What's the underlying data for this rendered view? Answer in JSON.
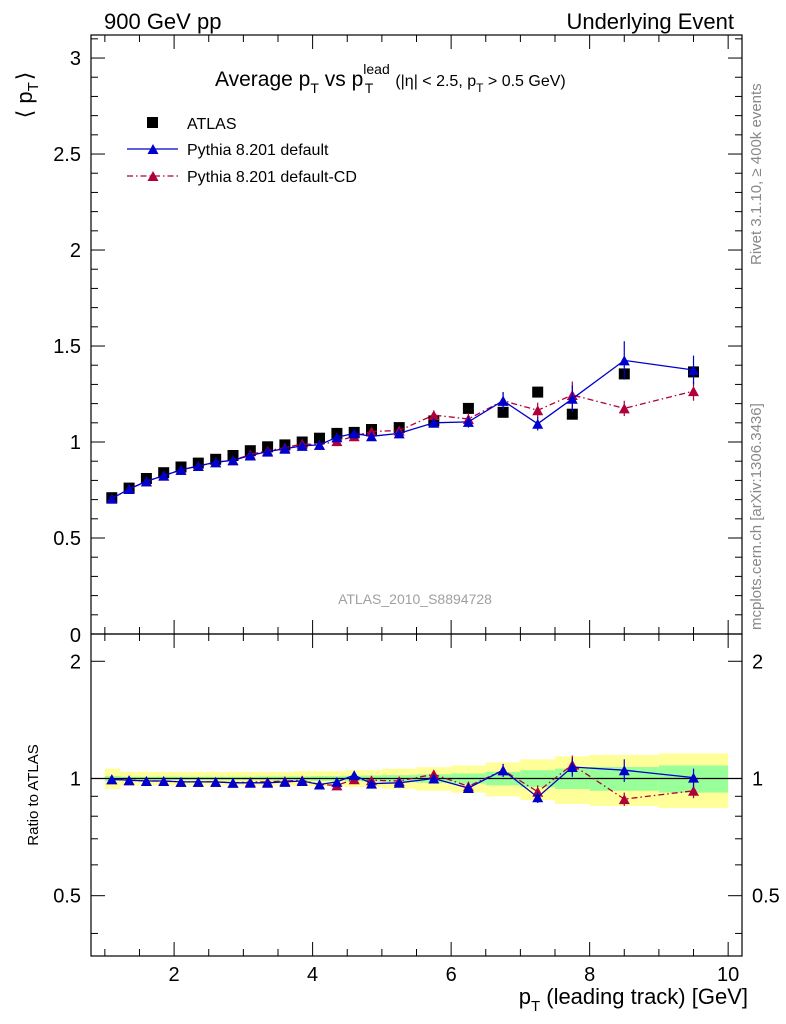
{
  "header": {
    "left": "900 GeV pp",
    "right": "Underlying Event"
  },
  "side_text": {
    "rivet": "Rivet 3.1.10, ≥ 400k events",
    "mcplots": "mcplots.cern.ch [arXiv:1306.3436]"
  },
  "plot_title": {
    "main": "Average p",
    "sub_t": "T",
    "vs": " vs p",
    "sup_lead": "lead",
    "sub_t2": "T",
    "cuts": "(|η| < 2.5, p",
    "cuts_sub": "T",
    "cuts_end": " > 0.5 GeV)"
  },
  "analysis_id": "ATLAS_2010_S8894728",
  "legend": {
    "atlas": "ATLAS",
    "default": "Pythia 8.201 default",
    "cd": "Pythia 8.201 default-CD"
  },
  "axes": {
    "ylabel_top_pre": "⟨ p",
    "ylabel_top_sub": "T",
    "ylabel_top_post": "⟩",
    "ylabel_bottom": "Ratio to ATLAS",
    "xlabel_pre": "p",
    "xlabel_sub": "T",
    "xlabel_post": " (leading track) [GeV]"
  },
  "colors": {
    "atlas": "#000000",
    "default": "#0000cc",
    "cd": "#b0003a",
    "band_inner": "#99ff99",
    "band_outer": "#ffff99"
  },
  "chart_data": [
    {
      "type": "scatter",
      "panel": "main",
      "xlim": [
        0.8,
        10.2
      ],
      "ylim": [
        0,
        3.12
      ],
      "xticks": [
        2,
        4,
        6,
        8,
        10
      ],
      "yticks": [
        0.5,
        1,
        1.5,
        2,
        2.5,
        3
      ],
      "ytick_labels": [
        "0.5",
        "1",
        "1.5",
        "2",
        "2.5",
        "3"
      ],
      "series": [
        {
          "name": "ATLAS",
          "marker": "square",
          "x": [
            1.1,
            1.35,
            1.6,
            1.85,
            2.1,
            2.35,
            2.6,
            2.85,
            3.1,
            3.35,
            3.6,
            3.85,
            4.1,
            4.35,
            4.6,
            4.85,
            5.25,
            5.75,
            6.25,
            6.75,
            7.25,
            7.75,
            8.5,
            9.5
          ],
          "y": [
            0.71,
            0.76,
            0.81,
            0.84,
            0.87,
            0.89,
            0.91,
            0.93,
            0.955,
            0.975,
            0.985,
            1.0,
            1.02,
            1.045,
            1.05,
            1.065,
            1.075,
            1.11,
            1.175,
            1.155,
            1.26,
            1.145,
            1.355,
            1.365
          ]
        },
        {
          "name": "Pythia 8.201 default",
          "marker": "triangle",
          "line": "solid",
          "x": [
            1.1,
            1.35,
            1.6,
            1.85,
            2.1,
            2.35,
            2.6,
            2.85,
            3.1,
            3.35,
            3.6,
            3.85,
            4.1,
            4.35,
            4.6,
            4.85,
            5.25,
            5.75,
            6.25,
            6.75,
            7.25,
            7.75,
            8.5,
            9.5
          ],
          "y": [
            0.705,
            0.755,
            0.795,
            0.825,
            0.855,
            0.875,
            0.895,
            0.905,
            0.93,
            0.95,
            0.965,
            0.98,
            0.985,
            1.025,
            1.045,
            1.03,
            1.045,
            1.1,
            1.105,
            1.215,
            1.095,
            1.225,
            1.425,
            1.375
          ],
          "err": [
            0.005,
            0.005,
            0.005,
            0.005,
            0.005,
            0.005,
            0.006,
            0.006,
            0.007,
            0.007,
            0.008,
            0.009,
            0.01,
            0.011,
            0.012,
            0.013,
            0.015,
            0.02,
            0.03,
            0.045,
            0.035,
            0.07,
            0.1,
            0.075
          ]
        },
        {
          "name": "Pythia 8.201 default-CD",
          "marker": "triangle",
          "line": "dashdot",
          "x": [
            1.1,
            1.35,
            1.6,
            1.85,
            2.1,
            2.35,
            2.6,
            2.85,
            3.1,
            3.35,
            3.6,
            3.85,
            4.1,
            4.35,
            4.6,
            4.85,
            5.25,
            5.75,
            6.25,
            6.75,
            7.25,
            7.75,
            8.5,
            9.5
          ],
          "y": [
            0.705,
            0.755,
            0.795,
            0.825,
            0.855,
            0.875,
            0.895,
            0.905,
            0.935,
            0.955,
            0.97,
            0.99,
            0.985,
            1.005,
            1.03,
            1.055,
            1.06,
            1.14,
            1.12,
            1.215,
            1.165,
            1.245,
            1.175,
            1.265
          ],
          "err": [
            0.005,
            0.005,
            0.005,
            0.005,
            0.005,
            0.005,
            0.006,
            0.006,
            0.007,
            0.007,
            0.008,
            0.009,
            0.01,
            0.011,
            0.012,
            0.013,
            0.015,
            0.025,
            0.03,
            0.045,
            0.04,
            0.07,
            0.04,
            0.05
          ]
        }
      ]
    },
    {
      "type": "scatter",
      "panel": "ratio",
      "xlim": [
        0.8,
        10.2
      ],
      "ylim": [
        0.35,
        2.35
      ],
      "log_y": true,
      "xticks": [
        2,
        4,
        6,
        8,
        10
      ],
      "xtick_labels": [
        "2",
        "4",
        "6",
        "8",
        "10"
      ],
      "yticks": [
        0.5,
        1,
        2
      ],
      "ytick_labels": [
        "0.5",
        "1",
        "2"
      ],
      "bands": {
        "edges": [
          1.0,
          1.225,
          1.475,
          1.725,
          1.975,
          2.225,
          2.475,
          2.725,
          2.975,
          3.225,
          3.475,
          3.725,
          3.975,
          4.225,
          4.475,
          4.725,
          5.0,
          5.5,
          6.0,
          6.5,
          7.0,
          7.5,
          8.0,
          9.0,
          10.0
        ],
        "inner": [
          0.015,
          0.01,
          0.01,
          0.01,
          0.01,
          0.01,
          0.01,
          0.01,
          0.01,
          0.012,
          0.012,
          0.012,
          0.014,
          0.014,
          0.016,
          0.018,
          0.02,
          0.025,
          0.03,
          0.04,
          0.05,
          0.06,
          0.07,
          0.08
        ],
        "outer": [
          0.06,
          0.04,
          0.04,
          0.04,
          0.04,
          0.04,
          0.04,
          0.04,
          0.04,
          0.04,
          0.04,
          0.045,
          0.045,
          0.045,
          0.05,
          0.05,
          0.06,
          0.07,
          0.08,
          0.1,
          0.12,
          0.14,
          0.15,
          0.16
        ]
      },
      "series": [
        {
          "name": "Pythia 8.201 default",
          "x": [
            1.1,
            1.35,
            1.6,
            1.85,
            2.1,
            2.35,
            2.6,
            2.85,
            3.1,
            3.35,
            3.6,
            3.85,
            4.1,
            4.35,
            4.6,
            4.85,
            5.25,
            5.75,
            6.25,
            6.75,
            7.25,
            7.75,
            8.5,
            9.5
          ],
          "y": [
            0.995,
            0.99,
            0.985,
            0.985,
            0.98,
            0.98,
            0.98,
            0.975,
            0.975,
            0.975,
            0.98,
            0.985,
            0.965,
            0.98,
            1.02,
            0.97,
            0.975,
            1.0,
            0.945,
            1.05,
            0.895,
            1.07,
            1.05,
            1.005
          ],
          "err": [
            0.007,
            0.007,
            0.007,
            0.007,
            0.007,
            0.007,
            0.007,
            0.007,
            0.008,
            0.008,
            0.008,
            0.009,
            0.01,
            0.011,
            0.012,
            0.013,
            0.015,
            0.02,
            0.025,
            0.04,
            0.03,
            0.06,
            0.07,
            0.055
          ]
        },
        {
          "name": "Pythia 8.201 default-CD",
          "x": [
            1.1,
            1.35,
            1.6,
            1.85,
            2.1,
            2.35,
            2.6,
            2.85,
            3.1,
            3.35,
            3.6,
            3.85,
            4.1,
            4.35,
            4.6,
            4.85,
            5.25,
            5.75,
            6.25,
            6.75,
            7.25,
            7.75,
            8.5,
            9.5
          ],
          "y": [
            0.995,
            0.99,
            0.985,
            0.985,
            0.98,
            0.98,
            0.98,
            0.975,
            0.98,
            0.98,
            0.985,
            0.99,
            0.965,
            0.96,
            0.995,
            0.99,
            0.985,
            1.025,
            0.955,
            1.05,
            0.925,
            1.085,
            0.885,
            0.93
          ],
          "err": [
            0.007,
            0.007,
            0.007,
            0.007,
            0.007,
            0.007,
            0.007,
            0.007,
            0.008,
            0.008,
            0.008,
            0.009,
            0.01,
            0.011,
            0.012,
            0.013,
            0.015,
            0.022,
            0.025,
            0.04,
            0.035,
            0.06,
            0.035,
            0.04
          ]
        }
      ]
    }
  ]
}
